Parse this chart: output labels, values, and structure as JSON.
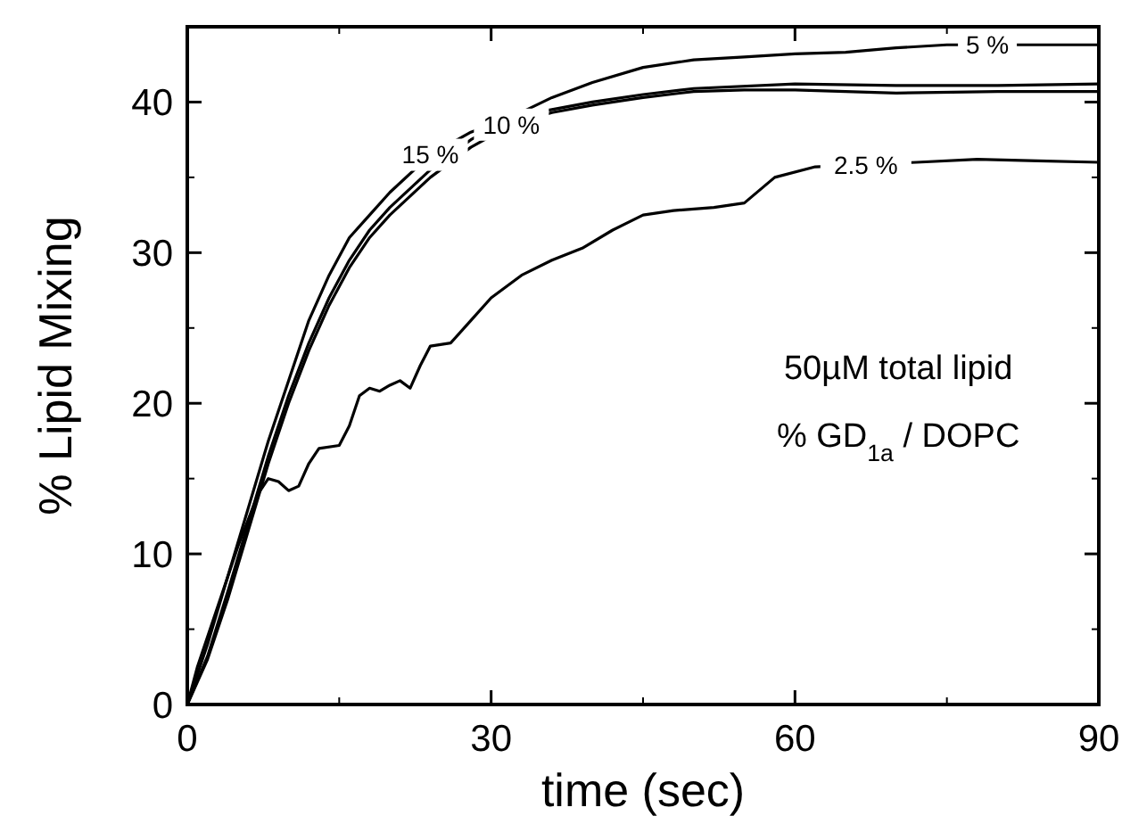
{
  "chart_data": {
    "type": "line",
    "xlabel": "time (sec)",
    "ylabel": "% Lipid Mixing",
    "xlim": [
      0,
      90
    ],
    "xticks": [
      0,
      30,
      60,
      90
    ],
    "ylim": [
      0,
      45
    ],
    "yticks": [
      0,
      10,
      20,
      30,
      40
    ],
    "grid": false,
    "line_style": "solid",
    "series": [
      {
        "color": "#000000",
        "x": [
          0,
          2,
          4,
          6,
          8,
          10,
          12,
          14,
          16,
          18,
          20,
          24,
          28,
          32,
          36,
          40,
          45,
          50,
          60,
          70,
          80,
          90
        ],
        "values": [
          0,
          4,
          8.5,
          13,
          17.5,
          21.5,
          25.5,
          28.5,
          31,
          32.5,
          34,
          36.5,
          38,
          39,
          39.5,
          40,
          40.5,
          40.9,
          41.2,
          41.1,
          41.1,
          41.2
        ]
      },
      {
        "color": "#000000",
        "x": [
          0,
          2,
          4,
          6,
          8,
          10,
          12,
          14,
          16,
          18,
          20,
          24,
          28,
          32,
          36,
          40,
          45,
          50,
          55,
          60,
          70,
          80,
          90
        ],
        "values": [
          0,
          3,
          7,
          11.5,
          16,
          20,
          23.5,
          26.5,
          29,
          31,
          32.5,
          35,
          37,
          38.5,
          39.3,
          39.8,
          40.3,
          40.7,
          40.8,
          40.8,
          40.6,
          40.7,
          40.7
        ]
      },
      {
        "color": "#000000",
        "x": [
          0,
          2,
          4,
          6,
          8,
          10,
          12,
          14,
          16,
          18,
          20,
          24,
          28,
          32,
          36,
          40,
          45,
          50,
          55,
          60,
          65,
          70,
          75,
          90
        ],
        "values": [
          0,
          3.2,
          7.5,
          12,
          16.5,
          20.5,
          24,
          27,
          29.5,
          31.5,
          33,
          35.5,
          37.5,
          39,
          40.3,
          41.3,
          42.3,
          42.8,
          43,
          43.2,
          43.3,
          43.6,
          43.8,
          43.8
        ]
      },
      {
        "color": "#000000",
        "x": [
          0,
          1,
          3,
          5,
          7,
          8,
          9,
          10,
          11,
          12,
          13,
          15,
          16,
          17,
          18,
          19,
          20,
          21,
          22,
          23,
          24,
          26,
          28,
          30,
          33,
          36,
          39,
          42,
          45,
          48,
          52,
          55,
          58,
          62,
          72,
          78,
          84,
          90
        ],
        "values": [
          0,
          2.5,
          6.5,
          10.5,
          14,
          15,
          14.8,
          14.2,
          14.5,
          16,
          17,
          17.2,
          18.5,
          20.5,
          21,
          20.8,
          21.2,
          21.5,
          21,
          22.5,
          23.8,
          24,
          25.5,
          27,
          28.5,
          29.5,
          30.3,
          31.5,
          32.5,
          32.8,
          33,
          33.3,
          35,
          35.7,
          36,
          36.2,
          36.1,
          36
        ]
      }
    ],
    "annotations": [
      {
        "text": "15 %",
        "x": 24,
        "y": 36.5
      },
      {
        "text": "10 %",
        "x": 32,
        "y": 38.5
      },
      {
        "text": "5 %",
        "x": 79,
        "y": 43.8
      },
      {
        "text": "2.5 %",
        "x": 67,
        "y": 35.8
      },
      "50µM total lipid",
      "% GD$_{1a}$ / DOPC"
    ]
  }
}
